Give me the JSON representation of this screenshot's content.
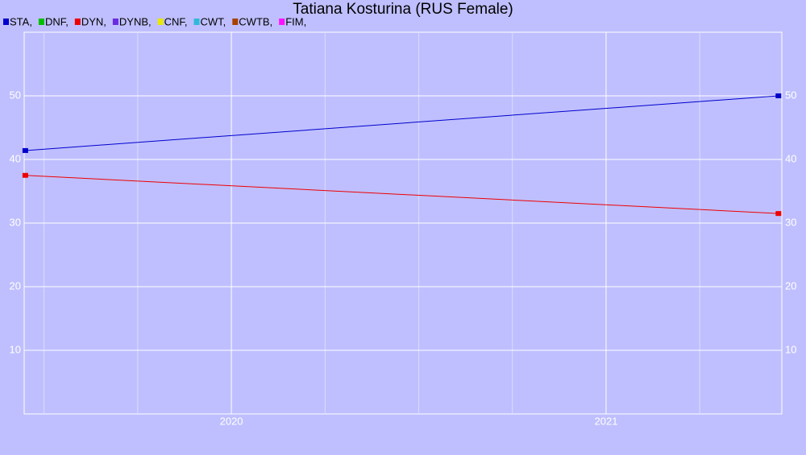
{
  "chart_data": {
    "type": "line",
    "title": "Tatiana Kosturina (RUS Female)",
    "x": [
      2019.45,
      2021.46
    ],
    "series": [
      {
        "name": "STA,",
        "color": "#0000cc",
        "values": [
          41.4,
          50
        ]
      },
      {
        "name": "DNF,",
        "color": "#00c000",
        "values": [
          null,
          null
        ]
      },
      {
        "name": "DYN,",
        "color": "#ee0000",
        "values": [
          37.5,
          31.5
        ]
      },
      {
        "name": "DYNB,",
        "color": "#6a2ae0",
        "values": [
          null,
          null
        ]
      },
      {
        "name": "CNF,",
        "color": "#e8e800",
        "values": [
          null,
          null
        ]
      },
      {
        "name": "CWT,",
        "color": "#30b8d8",
        "values": [
          null,
          null
        ]
      },
      {
        "name": "CWTB,",
        "color": "#a84000",
        "values": [
          null,
          null
        ]
      },
      {
        "name": "FIM,",
        "color": "#ff10ff",
        "values": [
          null,
          null
        ]
      }
    ],
    "xlim": [
      2019.447,
      2021.469
    ],
    "xticks": [
      2020,
      2021
    ],
    "xminorticks": [
      2019.5,
      2019.75,
      2020.25,
      2020.5,
      2020.75,
      2021.25
    ],
    "ylim": [
      0,
      60
    ],
    "yticks": [
      10,
      20,
      30,
      40,
      50
    ],
    "grid": true
  }
}
